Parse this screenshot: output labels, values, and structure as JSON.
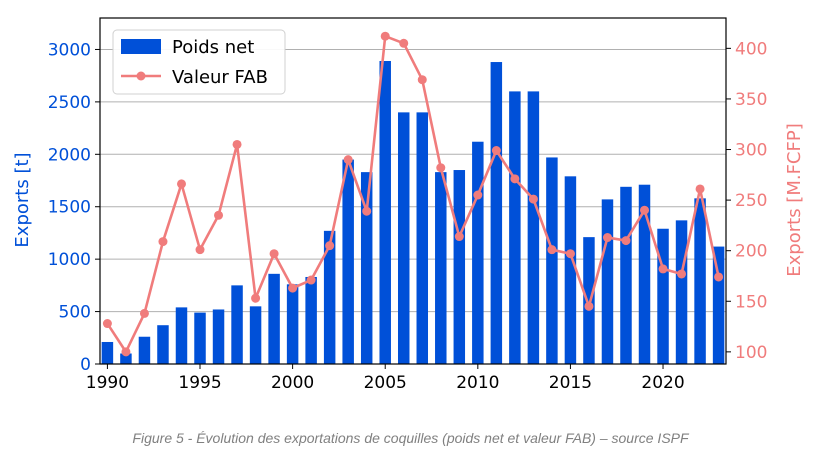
{
  "caption": "Figure 5 - Évolution des exportations de coquilles (poids net et valeur FAB) – source ISPF",
  "chart_data": {
    "type": "bar+line",
    "x": [
      1990,
      1991,
      1992,
      1993,
      1994,
      1995,
      1996,
      1997,
      1998,
      1999,
      2000,
      2001,
      2002,
      2003,
      2004,
      2005,
      2006,
      2007,
      2008,
      2009,
      2010,
      2011,
      2012,
      2013,
      2014,
      2015,
      2016,
      2017,
      2018,
      2019,
      2020,
      2021,
      2022,
      2023
    ],
    "xticks": [
      "1990",
      "1995",
      "2000",
      "2005",
      "2010",
      "2015",
      "2020"
    ],
    "xlim": [
      1989.6,
      2023.4
    ],
    "series": [
      {
        "name": "Poids net",
        "kind": "bar",
        "axis": "left",
        "color": "#0050d8",
        "values": [
          210,
          100,
          260,
          370,
          540,
          490,
          520,
          750,
          550,
          860,
          760,
          830,
          1270,
          1950,
          1830,
          2890,
          2400,
          2400,
          1830,
          1850,
          2120,
          2880,
          2600,
          2600,
          1970,
          1790,
          1210,
          1570,
          1690,
          1710,
          1290,
          1370,
          1580,
          1120
        ]
      },
      {
        "name": "Valeur FAB",
        "kind": "line",
        "axis": "right",
        "color": "#f07c7c",
        "values": [
          128,
          100,
          138,
          209,
          266,
          201,
          235,
          305,
          153,
          197,
          163,
          171,
          205,
          290,
          239,
          412,
          405,
          369,
          282,
          214,
          255,
          299,
          271,
          251,
          201,
          197,
          145,
          213,
          210,
          240,
          182,
          177,
          261,
          174
        ]
      }
    ],
    "left_axis": {
      "label": "Exports [t]",
      "ylim": [
        0,
        3300
      ],
      "ticks": [
        0,
        500,
        1000,
        1500,
        2000,
        2500,
        3000
      ],
      "color": "#0050d8"
    },
    "right_axis": {
      "label": "Exports [M.FCFP]",
      "ylim": [
        88,
        430
      ],
      "ticks": [
        100,
        150,
        200,
        250,
        300,
        350,
        400
      ],
      "color": "#f07c7c"
    },
    "grid": "horizontal",
    "legend": "top-left"
  }
}
